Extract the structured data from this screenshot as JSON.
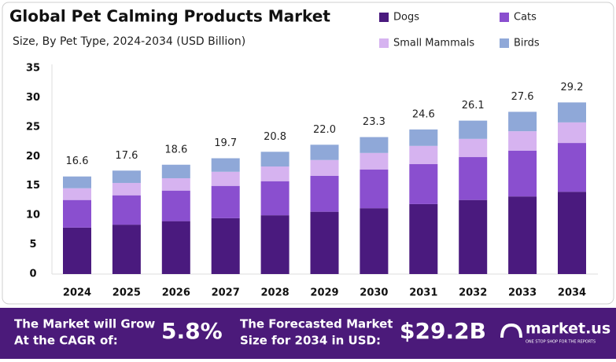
{
  "chart_data": {
    "type": "stacked-bar",
    "title": "Global Pet Calming Products Market",
    "subtitle": "Size, By Pet Type, 2024-2034 (USD Billion)",
    "categories": [
      "2024",
      "2025",
      "2026",
      "2027",
      "2028",
      "2029",
      "2030",
      "2031",
      "2032",
      "2033",
      "2034"
    ],
    "series": [
      {
        "name": "Dogs",
        "color": "#4a1a7e",
        "values": [
          7.9,
          8.4,
          9.0,
          9.5,
          10.0,
          10.6,
          11.2,
          11.9,
          12.6,
          13.2,
          14.0
        ]
      },
      {
        "name": "Cats",
        "color": "#8a4fcf",
        "values": [
          4.7,
          5.0,
          5.2,
          5.5,
          5.8,
          6.1,
          6.6,
          6.8,
          7.3,
          7.8,
          8.3
        ]
      },
      {
        "name": "Small Mammals",
        "color": "#d6b3f0",
        "values": [
          2.0,
          2.1,
          2.1,
          2.4,
          2.5,
          2.7,
          2.8,
          3.1,
          3.1,
          3.3,
          3.5
        ]
      },
      {
        "name": "Birds",
        "color": "#8fa8d8",
        "values": [
          2.0,
          2.1,
          2.3,
          2.3,
          2.5,
          2.6,
          2.7,
          2.8,
          3.1,
          3.3,
          3.4
        ]
      }
    ],
    "totals": {
      "values": [
        16.6,
        17.6,
        18.6,
        19.7,
        20.8,
        22.0,
        23.3,
        24.6,
        26.1,
        27.6,
        29.2
      ],
      "value_labels": [
        "16.6",
        "17.6",
        "18.6",
        "19.7",
        "20.8",
        "22.0",
        "23.3",
        "24.6",
        "26.1",
        "27.6",
        "29.2"
      ]
    },
    "ylim": [
      0,
      35
    ],
    "yticks": [
      0,
      5,
      10,
      15,
      20,
      25,
      30,
      35
    ],
    "grid": false,
    "legend": "top-right"
  },
  "footer": {
    "cagr_text": [
      "The Market will Grow",
      "At the CAGR of:"
    ],
    "cagr": "5.8%",
    "forecast_text": [
      "The Forecasted Market",
      "Size for 2034 in USD:"
    ],
    "forecast": "$29.2B",
    "brand": "market.us",
    "tagline": "ONE STOP SHOP FOR THE REPORTS"
  }
}
